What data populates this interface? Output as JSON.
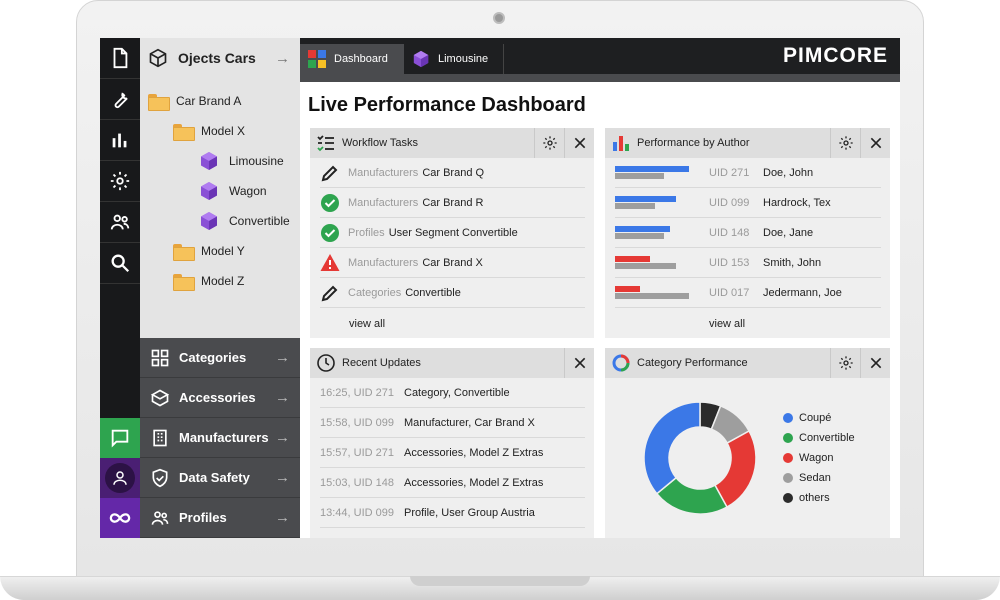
{
  "sidebar": {
    "icons": [
      {
        "name": "document-icon"
      },
      {
        "name": "wrench-icon"
      },
      {
        "name": "bar-chart-icon"
      },
      {
        "name": "gear-icon"
      },
      {
        "name": "users-icon"
      },
      {
        "name": "search-icon"
      }
    ],
    "bottom_icons": [
      {
        "name": "chat-icon",
        "color": "#2ea44f"
      },
      {
        "name": "user-icon",
        "color": "#4a1f73"
      },
      {
        "name": "pimcore-infinity-icon",
        "color": "#6428a8"
      }
    ]
  },
  "tree": {
    "title": "Ojects Cars",
    "nodes": [
      {
        "label": "Car Brand A",
        "type": "folder",
        "depth": 0
      },
      {
        "label": "Model X",
        "type": "folder",
        "depth": 1
      },
      {
        "label": "Limousine",
        "type": "object",
        "depth": 2
      },
      {
        "label": "Wagon",
        "type": "object",
        "depth": 2
      },
      {
        "label": "Convertible",
        "type": "object",
        "depth": 2
      },
      {
        "label": "Model Y",
        "type": "folder",
        "depth": 1
      },
      {
        "label": "Model Z",
        "type": "folder",
        "depth": 1
      }
    ]
  },
  "accordion": [
    {
      "label": "Categories",
      "icon": "grid-icon"
    },
    {
      "label": "Accessories",
      "icon": "box-icon"
    },
    {
      "label": "Manufacturers",
      "icon": "building-icon"
    },
    {
      "label": "Data Safety",
      "icon": "shield-icon"
    },
    {
      "label": "Profiles",
      "icon": "users-icon"
    }
  ],
  "tabs": [
    {
      "label": "Dashboard",
      "icon": "dashboard-icon",
      "active": true
    },
    {
      "label": "Limousine",
      "icon": "cube-icon",
      "active": false
    }
  ],
  "logo": "PIMCORE",
  "page_title": "Live Performance Dashboard",
  "workflow": {
    "title": "Workflow Tasks",
    "rows": [
      {
        "icon": "pencil-icon",
        "prefix": "Manufacturers",
        "text": "Car Brand Q"
      },
      {
        "icon": "check-circle-icon",
        "prefix": "Manufacturers",
        "text": "Car Brand R"
      },
      {
        "icon": "check-circle-icon",
        "prefix": "Profiles",
        "text": "User Segment Convertible"
      },
      {
        "icon": "warning-icon",
        "prefix": "Manufacturers",
        "text": "Car Brand X"
      },
      {
        "icon": "pencil-icon",
        "prefix": "Categories",
        "text": "Convertible"
      }
    ],
    "view_all": "view all"
  },
  "performance": {
    "title": "Performance by Author",
    "rows": [
      {
        "uid": "UID 271",
        "name": "Doe, John",
        "bar_color": "#3b78e7",
        "primary": 0.98,
        "secondary": 0.65
      },
      {
        "uid": "UID 099",
        "name": "Hardrock, Tex",
        "bar_color": "#3b78e7",
        "primary": 0.8,
        "secondary": 0.52
      },
      {
        "uid": "UID 148",
        "name": "Doe, Jane",
        "bar_color": "#3b78e7",
        "primary": 0.72,
        "secondary": 0.65
      },
      {
        "uid": "UID 153",
        "name": "Smith, John",
        "bar_color": "#e53935",
        "primary": 0.46,
        "secondary": 0.8
      },
      {
        "uid": "UID 017",
        "name": "Jedermann, Joe",
        "bar_color": "#e53935",
        "primary": 0.33,
        "secondary": 0.98
      }
    ],
    "view_all": "view all"
  },
  "updates": {
    "title": "Recent Updates",
    "rows": [
      {
        "meta": "16:25, UID 271",
        "text": "Category, Convertible"
      },
      {
        "meta": "15:58, UID 099",
        "text": "Manufacturer, Car Brand X"
      },
      {
        "meta": "15:57, UID 271",
        "text": "Accessories, Model Z Extras"
      },
      {
        "meta": "15:03, UID 148",
        "text": "Accessories, Model Z Extras"
      },
      {
        "meta": "13:44, UID 099",
        "text": "Profile, User Group Austria"
      }
    ]
  },
  "category_performance": {
    "title": "Category Performance",
    "chart_data": {
      "type": "pie",
      "categories": [
        "Coupé",
        "Convertible",
        "Wagon",
        "Sedan",
        "others"
      ],
      "values": [
        36,
        22,
        25,
        11,
        6
      ],
      "colors": [
        "#3b78e7",
        "#2ea44f",
        "#e53935",
        "#9e9e9e",
        "#2b2b2b"
      ],
      "legend": "right"
    }
  }
}
